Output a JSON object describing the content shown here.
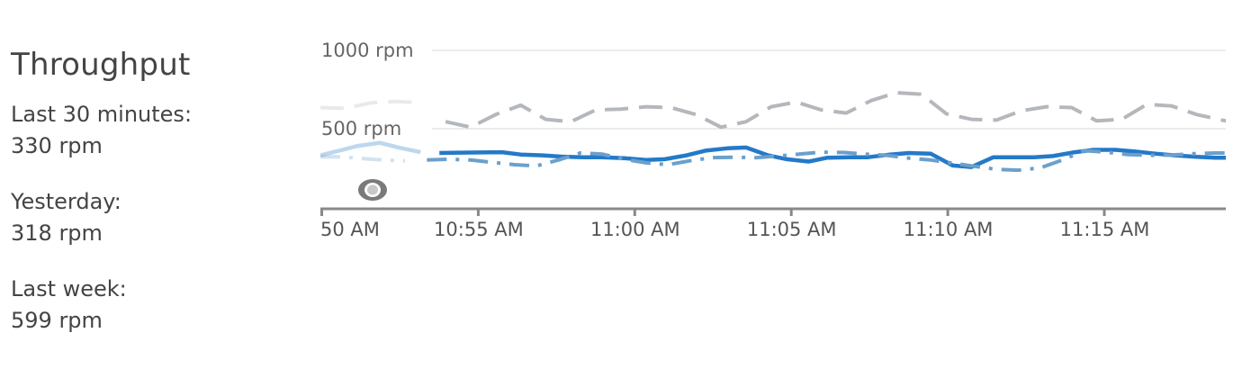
{
  "panel": {
    "title": "Throughput",
    "stats": [
      {
        "label": "Last 30 minutes:",
        "value": "330 rpm"
      },
      {
        "label": "Yesterday:",
        "value": "318 rpm"
      },
      {
        "label": "Last week:",
        "value": "599 rpm"
      }
    ]
  },
  "chart_data": {
    "type": "line",
    "title": "Throughput",
    "ylabel": "",
    "xlabel": "",
    "ylim": [
      0,
      1000
    ],
    "y_ticks": [
      {
        "value": 500,
        "label": "500 rpm"
      },
      {
        "value": 1000,
        "label": "1000 rpm"
      }
    ],
    "x_tick_labels": [
      "50 AM",
      "10:55 AM",
      "11:00 AM",
      "11:05 AM",
      "11:10 AM",
      "11:15 AM"
    ],
    "x_ticks_min": [
      -1,
      4,
      9,
      14,
      19,
      24
    ],
    "xlim_min": [
      -1,
      28.3
    ],
    "faded_before_min": 2.3,
    "grid": true,
    "legend": "none",
    "colors": {
      "current": "#2479c8",
      "yesterday": "#6ba0cc",
      "last_week": "#b4b7bb",
      "axis": "#888888",
      "grid": "#e6e6e6"
    },
    "series": [
      {
        "key": "current",
        "style": "solid",
        "x_min": [
          -1.0,
          -0.4,
          0.2,
          0.9,
          1.5,
          2.2,
          2.8,
          3.5,
          4.1,
          4.8,
          5.4,
          6.1,
          6.7,
          7.4,
          8.0,
          8.7,
          9.4,
          10.0,
          10.7,
          11.3,
          12.0,
          12.6,
          13.3,
          13.9,
          14.6,
          15.2,
          15.9,
          16.5,
          17.2,
          17.8,
          18.5,
          19.2,
          19.8,
          20.5,
          21.1,
          21.8,
          22.4,
          23.1,
          23.7,
          24.4,
          25.0,
          25.7,
          26.3,
          27.0,
          27.6,
          28.3
        ],
        "y": [
          330,
          360,
          390,
          410,
          380,
          350,
          345,
          347,
          348,
          350,
          335,
          330,
          322,
          318,
          318,
          312,
          300,
          305,
          330,
          360,
          375,
          380,
          330,
          305,
          290,
          315,
          318,
          318,
          335,
          345,
          340,
          265,
          255,
          318,
          318,
          318,
          325,
          350,
          365,
          365,
          355,
          340,
          330,
          320,
          315,
          315
        ]
      },
      {
        "key": "yesterday",
        "style": "dash-dot",
        "x_min": [
          -1.0,
          -0.3,
          0.3,
          1.0,
          1.7,
          2.4,
          3.1,
          3.8,
          4.5,
          5.2,
          5.9,
          6.6,
          7.3,
          8.0,
          8.7,
          9.4,
          10.1,
          10.8,
          11.5,
          12.2,
          12.9,
          13.6,
          14.3,
          15.0,
          15.7,
          16.4,
          17.1,
          17.8,
          18.5,
          19.2,
          19.9,
          20.6,
          21.3,
          22.0,
          22.7,
          23.4,
          24.1,
          24.8,
          25.5,
          26.2,
          26.9,
          27.6,
          28.3
        ],
        "y": [
          320,
          320,
          310,
          300,
          295,
          300,
          305,
          300,
          285,
          270,
          262,
          300,
          345,
          338,
          305,
          282,
          270,
          295,
          315,
          318,
          315,
          325,
          338,
          350,
          348,
          338,
          330,
          312,
          300,
          280,
          260,
          240,
          235,
          250,
          300,
          360,
          350,
          335,
          330,
          332,
          340,
          345,
          345
        ]
      },
      {
        "key": "last_week",
        "style": "dash",
        "x_min": [
          -1.0,
          -0.2,
          0.6,
          1.4,
          2.2,
          3.0,
          3.8,
          4.6,
          5.4,
          6.2,
          7.0,
          7.8,
          8.6,
          9.4,
          10.2,
          11.0,
          11.8,
          12.6,
          13.4,
          14.2,
          15.0,
          15.8,
          16.6,
          17.4,
          18.2,
          19.0,
          19.8,
          20.6,
          21.4,
          22.2,
          23.0,
          23.8,
          24.6,
          25.4,
          26.2,
          27.0,
          27.8,
          28.3
        ],
        "y": [
          635,
          630,
          665,
          675,
          665,
          545,
          510,
          590,
          650,
          560,
          545,
          620,
          625,
          640,
          635,
          590,
          510,
          545,
          640,
          670,
          620,
          600,
          680,
          730,
          720,
          595,
          560,
          555,
          615,
          640,
          635,
          550,
          560,
          655,
          645,
          590,
          555,
          535
        ]
      }
    ]
  }
}
